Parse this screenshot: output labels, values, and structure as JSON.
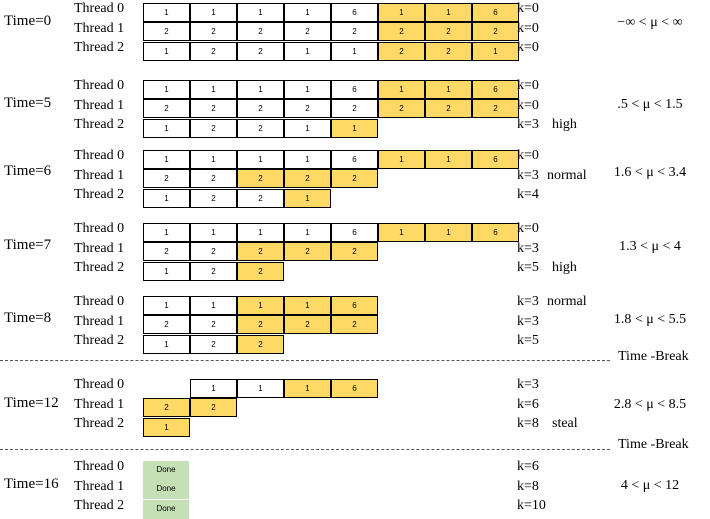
{
  "colors": {
    "highlight": "#ffd966",
    "done": "#c5e0b4",
    "normal": "#ffffff"
  },
  "thread_names": [
    "Thread 0",
    "Thread 1",
    "Thread 2"
  ],
  "time_break_label": "Time -Break",
  "panels": [
    {
      "time": "Time=0",
      "rows": [
        {
          "start": 0,
          "cells": [
            "1",
            "1",
            "1",
            "1",
            "6",
            "1",
            "1",
            "6"
          ],
          "highlight_from": 5
        },
        {
          "start": 0,
          "cells": [
            "2",
            "2",
            "2",
            "2",
            "2",
            "2",
            "2",
            "2"
          ],
          "highlight_from": 5
        },
        {
          "start": 0,
          "cells": [
            "1",
            "2",
            "2",
            "1",
            "1",
            "2",
            "2",
            "1"
          ],
          "highlight_from": 5
        }
      ],
      "k": [
        "k=0",
        "k=0",
        "k=0"
      ],
      "status": [
        "",
        "",
        ""
      ],
      "range": "−∞ <  μ < ∞"
    },
    {
      "time": "Time=5",
      "rows": [
        {
          "start": 0,
          "cells": [
            "1",
            "1",
            "1",
            "1",
            "6",
            "1",
            "1",
            "6"
          ],
          "highlight_from": 5
        },
        {
          "start": 0,
          "cells": [
            "2",
            "2",
            "2",
            "2",
            "2",
            "2",
            "2",
            "2"
          ],
          "highlight_from": 5
        },
        {
          "start": 0,
          "cells": [
            "1",
            "2",
            "2",
            "1",
            "1"
          ],
          "highlight_from": 4
        }
      ],
      "k": [
        "k=0",
        "k=0",
        "k=3"
      ],
      "status": [
        "",
        "",
        "high"
      ],
      "range": ".5 <  μ < 1.5"
    },
    {
      "time": "Time=6",
      "rows": [
        {
          "start": 0,
          "cells": [
            "1",
            "1",
            "1",
            "1",
            "6",
            "1",
            "1",
            "6"
          ],
          "highlight_from": 5
        },
        {
          "start": 0,
          "cells": [
            "2",
            "2",
            "2",
            "2",
            "2"
          ],
          "highlight_from": 2
        },
        {
          "start": 0,
          "cells": [
            "1",
            "2",
            "2",
            "1"
          ],
          "highlight_from": 3
        }
      ],
      "k": [
        "k=0",
        "k=3",
        "k=4"
      ],
      "status": [
        "",
        "normal",
        ""
      ],
      "range": "1.6 <  μ < 3.4"
    },
    {
      "time": "Time=7",
      "rows": [
        {
          "start": 0,
          "cells": [
            "1",
            "1",
            "1",
            "1",
            "6",
            "1",
            "1",
            "6"
          ],
          "highlight_from": 5
        },
        {
          "start": 0,
          "cells": [
            "2",
            "2",
            "2",
            "2",
            "2"
          ],
          "highlight_from": 2
        },
        {
          "start": 0,
          "cells": [
            "1",
            "2",
            "2"
          ],
          "highlight_from": 2
        }
      ],
      "k": [
        "k=0",
        "k=3",
        "k=5"
      ],
      "status": [
        "",
        "",
        "high"
      ],
      "range": "1.3 <  μ < 4"
    },
    {
      "time": "Time=8",
      "rows": [
        {
          "start": 0,
          "cells": [
            "1",
            "1",
            "1",
            "1",
            "6"
          ],
          "highlight_from": 2
        },
        {
          "start": 0,
          "cells": [
            "2",
            "2",
            "2",
            "2",
            "2"
          ],
          "highlight_from": 2
        },
        {
          "start": 0,
          "cells": [
            "1",
            "2",
            "2"
          ],
          "highlight_from": 2
        }
      ],
      "k": [
        "k=3",
        "k=3",
        "k=5"
      ],
      "status": [
        "normal",
        "",
        ""
      ],
      "range": "1.8 <  μ < 5.5"
    },
    {
      "time": "Time=12",
      "rows": [
        {
          "start": 1,
          "cells": [
            "1",
            "1",
            "1",
            "6"
          ],
          "highlight_from": 2
        },
        {
          "start": 0,
          "cells": [
            "2",
            "2"
          ],
          "highlight_from": 0
        },
        {
          "start": 0,
          "cells": [
            "1"
          ],
          "highlight_from": 0
        }
      ],
      "k": [
        "k=3",
        "k=6",
        "k=8"
      ],
      "status": [
        "",
        "",
        "steal"
      ],
      "range": "2.8 <  μ < 8.5"
    },
    {
      "time": "Time=16",
      "rows": [
        {
          "start": 0,
          "cells": [
            "Done"
          ],
          "done": true
        },
        {
          "start": 0,
          "cells": [
            "Done"
          ],
          "done": true
        },
        {
          "start": 0,
          "cells": [
            "Done"
          ],
          "done": true
        }
      ],
      "k": [
        "k=6",
        "k=8",
        "k=10"
      ],
      "status": [
        "",
        "",
        ""
      ],
      "range": "4 <  μ < 12"
    }
  ]
}
